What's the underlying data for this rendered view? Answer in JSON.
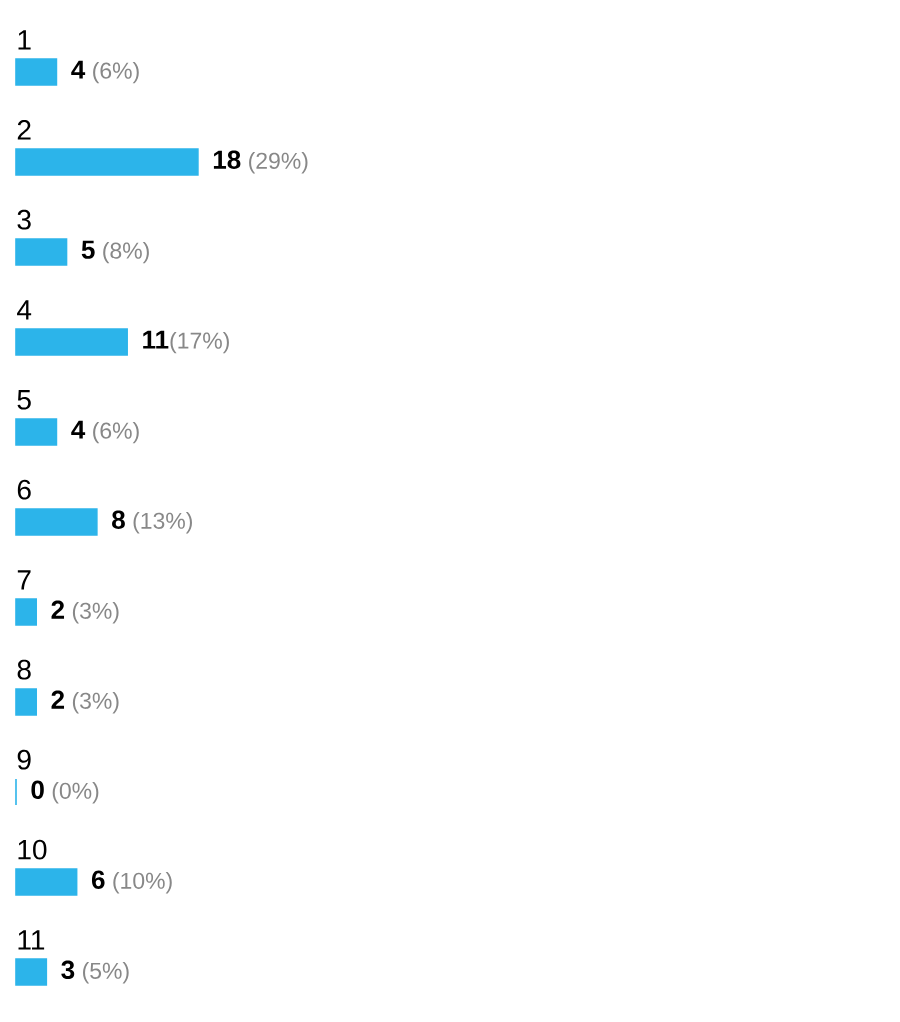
{
  "chart_data": {
    "type": "bar",
    "orientation": "horizontal",
    "categories": [
      "1",
      "2",
      "3",
      "4",
      "5",
      "6",
      "7",
      "8",
      "9",
      "10",
      "11"
    ],
    "values": [
      4,
      18,
      5,
      11,
      4,
      8,
      2,
      2,
      0,
      6,
      3
    ],
    "value_labels": [
      "**4** (6%)",
      "**18** (29%)",
      "**5** (8%)",
      "**11**(17%)",
      "**4** (6%)",
      "**8** (13%)",
      "**2** (3%)",
      "**2** (3%)",
      "**0** (0%)",
      "**6** (10%)",
      "**3** (5%)"
    ],
    "color": "#2cb4ea"
  }
}
